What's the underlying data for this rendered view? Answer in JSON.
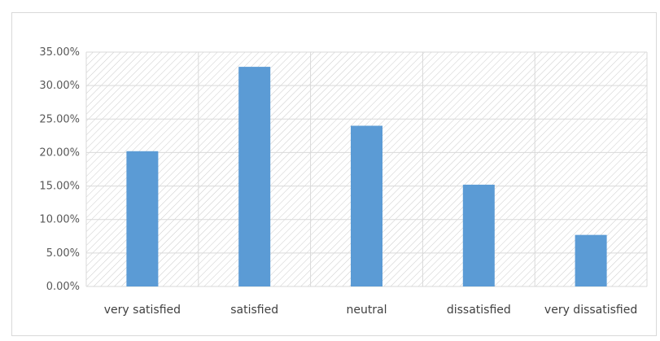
{
  "chart_data": {
    "type": "bar",
    "categories": [
      "very satisfied",
      "satisfied",
      "neutral",
      "dissatisfied",
      "very dissatisfied"
    ],
    "values": [
      0.202,
      0.328,
      0.24,
      0.152,
      0.077
    ],
    "ylim": [
      0,
      0.35
    ],
    "yticks": [
      "0.00%",
      "5.00%",
      "10.00%",
      "15.00%",
      "20.00%",
      "25.00%",
      "30.00%",
      "35.00%"
    ],
    "grid": "on",
    "plot_background": "diagonal-hatch",
    "bar_color": "#5b9bd5",
    "grid_color": "#d9d9d9",
    "hatch_color": "#cccccc",
    "label_color": "#595959"
  }
}
